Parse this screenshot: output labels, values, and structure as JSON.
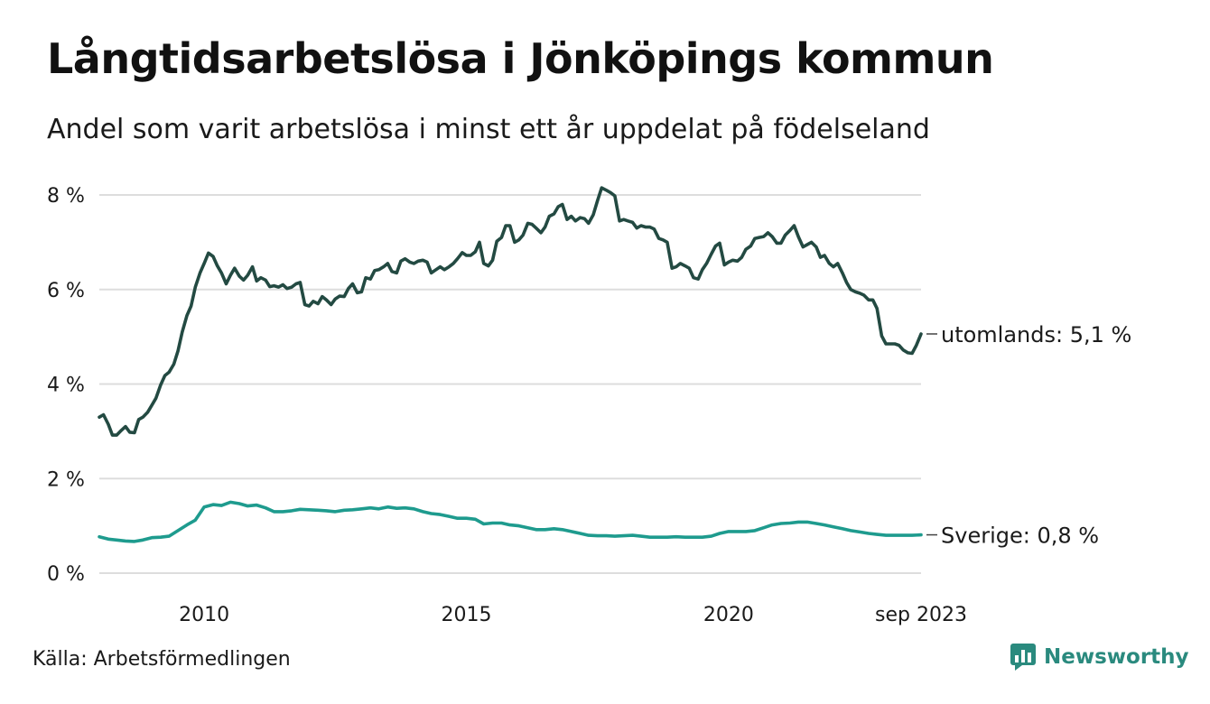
{
  "title": "Långtidsarbetslösa i Jönköpings kommun",
  "subtitle": "Andel som varit arbetslösa i minst ett år uppdelat på födelseland",
  "source": "Källa: Arbetsförmedlingen",
  "brand": {
    "name": "Newsworthy",
    "icon": "bar-chart-icon",
    "color": "#2a8a7e"
  },
  "chart_data": {
    "type": "line",
    "x_unit": "decimal year (monthly data)",
    "xlim": [
      2008.0,
      2023.67
    ],
    "ylim": [
      0,
      8
    ],
    "y_ticks": [
      {
        "value": 0,
        "label": "0 %"
      },
      {
        "value": 2,
        "label": "2 %"
      },
      {
        "value": 4,
        "label": "4 %"
      },
      {
        "value": 6,
        "label": "6 %"
      },
      {
        "value": 8,
        "label": "8 %"
      }
    ],
    "x_ticks": [
      {
        "value": 2010,
        "label": "2010"
      },
      {
        "value": 2015,
        "label": "2015"
      },
      {
        "value": 2020,
        "label": "2020"
      },
      {
        "value": 2023.67,
        "label": "sep 2023"
      }
    ],
    "grid": "horizontal",
    "series": [
      {
        "name": "utomlands",
        "label": "utomlands: 5,1 %",
        "color": "#234a42",
        "points": [
          [
            2008.0,
            3.3
          ],
          [
            2008.08,
            3.35
          ],
          [
            2008.17,
            3.15
          ],
          [
            2008.25,
            2.92
          ],
          [
            2008.33,
            2.92
          ],
          [
            2008.42,
            3.02
          ],
          [
            2008.5,
            3.1
          ],
          [
            2008.58,
            2.98
          ],
          [
            2008.67,
            2.97
          ],
          [
            2008.75,
            3.25
          ],
          [
            2008.83,
            3.3
          ],
          [
            2008.92,
            3.4
          ],
          [
            2009.0,
            3.55
          ],
          [
            2009.08,
            3.7
          ],
          [
            2009.17,
            3.98
          ],
          [
            2009.25,
            4.18
          ],
          [
            2009.33,
            4.25
          ],
          [
            2009.42,
            4.42
          ],
          [
            2009.5,
            4.7
          ],
          [
            2009.58,
            5.1
          ],
          [
            2009.67,
            5.45
          ],
          [
            2009.75,
            5.65
          ],
          [
            2009.83,
            6.05
          ],
          [
            2009.92,
            6.35
          ],
          [
            2010.0,
            6.55
          ],
          [
            2010.08,
            6.77
          ],
          [
            2010.17,
            6.7
          ],
          [
            2010.25,
            6.5
          ],
          [
            2010.33,
            6.35
          ],
          [
            2010.42,
            6.12
          ],
          [
            2010.5,
            6.3
          ],
          [
            2010.58,
            6.45
          ],
          [
            2010.67,
            6.28
          ],
          [
            2010.75,
            6.2
          ],
          [
            2010.83,
            6.3
          ],
          [
            2010.92,
            6.48
          ],
          [
            2011.0,
            6.18
          ],
          [
            2011.08,
            6.25
          ],
          [
            2011.17,
            6.2
          ],
          [
            2011.25,
            6.06
          ],
          [
            2011.33,
            6.08
          ],
          [
            2011.42,
            6.05
          ],
          [
            2011.5,
            6.1
          ],
          [
            2011.58,
            6.02
          ],
          [
            2011.67,
            6.05
          ],
          [
            2011.75,
            6.12
          ],
          [
            2011.83,
            6.15
          ],
          [
            2011.92,
            5.68
          ],
          [
            2012.0,
            5.65
          ],
          [
            2012.08,
            5.75
          ],
          [
            2012.17,
            5.7
          ],
          [
            2012.25,
            5.85
          ],
          [
            2012.33,
            5.78
          ],
          [
            2012.42,
            5.68
          ],
          [
            2012.5,
            5.8
          ],
          [
            2012.58,
            5.86
          ],
          [
            2012.67,
            5.85
          ],
          [
            2012.75,
            6.02
          ],
          [
            2012.83,
            6.12
          ],
          [
            2012.92,
            5.93
          ],
          [
            2013.0,
            5.95
          ],
          [
            2013.08,
            6.25
          ],
          [
            2013.17,
            6.22
          ],
          [
            2013.25,
            6.4
          ],
          [
            2013.33,
            6.42
          ],
          [
            2013.42,
            6.48
          ],
          [
            2013.5,
            6.55
          ],
          [
            2013.58,
            6.38
          ],
          [
            2013.67,
            6.35
          ],
          [
            2013.75,
            6.6
          ],
          [
            2013.83,
            6.65
          ],
          [
            2013.92,
            6.58
          ],
          [
            2014.0,
            6.55
          ],
          [
            2014.08,
            6.6
          ],
          [
            2014.17,
            6.62
          ],
          [
            2014.25,
            6.58
          ],
          [
            2014.33,
            6.35
          ],
          [
            2014.42,
            6.42
          ],
          [
            2014.5,
            6.48
          ],
          [
            2014.58,
            6.42
          ],
          [
            2014.67,
            6.48
          ],
          [
            2014.75,
            6.55
          ],
          [
            2014.83,
            6.65
          ],
          [
            2014.92,
            6.78
          ],
          [
            2015.0,
            6.72
          ],
          [
            2015.08,
            6.72
          ],
          [
            2015.17,
            6.8
          ],
          [
            2015.25,
            7.0
          ],
          [
            2015.33,
            6.55
          ],
          [
            2015.42,
            6.5
          ],
          [
            2015.5,
            6.62
          ],
          [
            2015.58,
            7.02
          ],
          [
            2015.67,
            7.1
          ],
          [
            2015.75,
            7.35
          ],
          [
            2015.83,
            7.35
          ],
          [
            2015.92,
            7.0
          ],
          [
            2016.0,
            7.05
          ],
          [
            2016.08,
            7.15
          ],
          [
            2016.17,
            7.4
          ],
          [
            2016.25,
            7.38
          ],
          [
            2016.33,
            7.3
          ],
          [
            2016.42,
            7.2
          ],
          [
            2016.5,
            7.32
          ],
          [
            2016.58,
            7.55
          ],
          [
            2016.67,
            7.6
          ],
          [
            2016.75,
            7.75
          ],
          [
            2016.83,
            7.8
          ],
          [
            2016.92,
            7.48
          ],
          [
            2017.0,
            7.55
          ],
          [
            2017.08,
            7.45
          ],
          [
            2017.17,
            7.52
          ],
          [
            2017.25,
            7.5
          ],
          [
            2017.33,
            7.4
          ],
          [
            2017.42,
            7.58
          ],
          [
            2017.5,
            7.88
          ],
          [
            2017.58,
            8.15
          ],
          [
            2017.67,
            8.1
          ],
          [
            2017.75,
            8.05
          ],
          [
            2017.83,
            7.98
          ],
          [
            2017.92,
            7.45
          ],
          [
            2018.0,
            7.48
          ],
          [
            2018.08,
            7.45
          ],
          [
            2018.17,
            7.42
          ],
          [
            2018.25,
            7.3
          ],
          [
            2018.33,
            7.35
          ],
          [
            2018.42,
            7.32
          ],
          [
            2018.5,
            7.32
          ],
          [
            2018.58,
            7.28
          ],
          [
            2018.67,
            7.08
          ],
          [
            2018.75,
            7.05
          ],
          [
            2018.83,
            7.0
          ],
          [
            2018.92,
            6.45
          ],
          [
            2019.0,
            6.48
          ],
          [
            2019.08,
            6.55
          ],
          [
            2019.17,
            6.5
          ],
          [
            2019.25,
            6.45
          ],
          [
            2019.33,
            6.25
          ],
          [
            2019.42,
            6.22
          ],
          [
            2019.5,
            6.42
          ],
          [
            2019.58,
            6.55
          ],
          [
            2019.67,
            6.75
          ],
          [
            2019.75,
            6.92
          ],
          [
            2019.83,
            6.98
          ],
          [
            2019.92,
            6.52
          ],
          [
            2020.0,
            6.58
          ],
          [
            2020.08,
            6.62
          ],
          [
            2020.17,
            6.6
          ],
          [
            2020.25,
            6.68
          ],
          [
            2020.33,
            6.85
          ],
          [
            2020.42,
            6.92
          ],
          [
            2020.5,
            7.08
          ],
          [
            2020.58,
            7.1
          ],
          [
            2020.67,
            7.12
          ],
          [
            2020.75,
            7.2
          ],
          [
            2020.83,
            7.12
          ],
          [
            2020.92,
            6.98
          ],
          [
            2021.0,
            6.98
          ],
          [
            2021.08,
            7.15
          ],
          [
            2021.17,
            7.25
          ],
          [
            2021.25,
            7.35
          ],
          [
            2021.33,
            7.12
          ],
          [
            2021.42,
            6.9
          ],
          [
            2021.5,
            6.95
          ],
          [
            2021.58,
            7.0
          ],
          [
            2021.67,
            6.9
          ],
          [
            2021.75,
            6.68
          ],
          [
            2021.83,
            6.72
          ],
          [
            2021.92,
            6.55
          ],
          [
            2022.0,
            6.48
          ],
          [
            2022.08,
            6.55
          ],
          [
            2022.17,
            6.35
          ],
          [
            2022.25,
            6.15
          ],
          [
            2022.33,
            6.0
          ],
          [
            2022.42,
            5.95
          ],
          [
            2022.5,
            5.92
          ],
          [
            2022.58,
            5.88
          ],
          [
            2022.67,
            5.78
          ],
          [
            2022.75,
            5.78
          ],
          [
            2022.83,
            5.6
          ],
          [
            2022.92,
            5.02
          ],
          [
            2023.0,
            4.85
          ],
          [
            2023.08,
            4.85
          ],
          [
            2023.17,
            4.85
          ],
          [
            2023.25,
            4.82
          ],
          [
            2023.33,
            4.72
          ],
          [
            2023.42,
            4.66
          ],
          [
            2023.5,
            4.65
          ],
          [
            2023.58,
            4.82
          ],
          [
            2023.67,
            5.06
          ]
        ]
      },
      {
        "name": "Sverige",
        "label": "Sverige: 0,8 %",
        "color": "#1e9b8e",
        "points": [
          [
            2008.0,
            0.77
          ],
          [
            2008.17,
            0.72
          ],
          [
            2008.33,
            0.7
          ],
          [
            2008.5,
            0.68
          ],
          [
            2008.67,
            0.67
          ],
          [
            2008.83,
            0.7
          ],
          [
            2009.0,
            0.75
          ],
          [
            2009.17,
            0.76
          ],
          [
            2009.33,
            0.78
          ],
          [
            2009.5,
            0.9
          ],
          [
            2009.67,
            1.02
          ],
          [
            2009.83,
            1.12
          ],
          [
            2010.0,
            1.4
          ],
          [
            2010.17,
            1.45
          ],
          [
            2010.33,
            1.43
          ],
          [
            2010.5,
            1.5
          ],
          [
            2010.67,
            1.47
          ],
          [
            2010.83,
            1.42
          ],
          [
            2011.0,
            1.44
          ],
          [
            2011.17,
            1.38
          ],
          [
            2011.33,
            1.3
          ],
          [
            2011.5,
            1.3
          ],
          [
            2011.67,
            1.32
          ],
          [
            2011.83,
            1.35
          ],
          [
            2012.0,
            1.34
          ],
          [
            2012.17,
            1.33
          ],
          [
            2012.33,
            1.32
          ],
          [
            2012.5,
            1.3
          ],
          [
            2012.67,
            1.33
          ],
          [
            2012.83,
            1.34
          ],
          [
            2013.0,
            1.36
          ],
          [
            2013.17,
            1.38
          ],
          [
            2013.33,
            1.36
          ],
          [
            2013.5,
            1.4
          ],
          [
            2013.67,
            1.37
          ],
          [
            2013.83,
            1.38
          ],
          [
            2014.0,
            1.36
          ],
          [
            2014.17,
            1.3
          ],
          [
            2014.33,
            1.26
          ],
          [
            2014.5,
            1.24
          ],
          [
            2014.67,
            1.2
          ],
          [
            2014.83,
            1.16
          ],
          [
            2015.0,
            1.16
          ],
          [
            2015.17,
            1.14
          ],
          [
            2015.33,
            1.04
          ],
          [
            2015.5,
            1.06
          ],
          [
            2015.67,
            1.06
          ],
          [
            2015.83,
            1.02
          ],
          [
            2016.0,
            1.0
          ],
          [
            2016.17,
            0.96
          ],
          [
            2016.33,
            0.92
          ],
          [
            2016.5,
            0.92
          ],
          [
            2016.67,
            0.94
          ],
          [
            2016.83,
            0.92
          ],
          [
            2017.0,
            0.88
          ],
          [
            2017.17,
            0.84
          ],
          [
            2017.33,
            0.8
          ],
          [
            2017.5,
            0.79
          ],
          [
            2017.67,
            0.79
          ],
          [
            2017.83,
            0.78
          ],
          [
            2018.0,
            0.79
          ],
          [
            2018.17,
            0.8
          ],
          [
            2018.33,
            0.78
          ],
          [
            2018.5,
            0.76
          ],
          [
            2018.67,
            0.76
          ],
          [
            2018.83,
            0.76
          ],
          [
            2019.0,
            0.77
          ],
          [
            2019.17,
            0.76
          ],
          [
            2019.33,
            0.76
          ],
          [
            2019.5,
            0.76
          ],
          [
            2019.67,
            0.78
          ],
          [
            2019.83,
            0.84
          ],
          [
            2020.0,
            0.88
          ],
          [
            2020.17,
            0.88
          ],
          [
            2020.33,
            0.88
          ],
          [
            2020.5,
            0.9
          ],
          [
            2020.67,
            0.96
          ],
          [
            2020.83,
            1.02
          ],
          [
            2021.0,
            1.05
          ],
          [
            2021.17,
            1.06
          ],
          [
            2021.33,
            1.08
          ],
          [
            2021.5,
            1.08
          ],
          [
            2021.67,
            1.05
          ],
          [
            2021.83,
            1.02
          ],
          [
            2022.0,
            0.98
          ],
          [
            2022.17,
            0.94
          ],
          [
            2022.33,
            0.9
          ],
          [
            2022.5,
            0.87
          ],
          [
            2022.67,
            0.84
          ],
          [
            2022.83,
            0.82
          ],
          [
            2023.0,
            0.8
          ],
          [
            2023.17,
            0.8
          ],
          [
            2023.33,
            0.8
          ],
          [
            2023.5,
            0.8
          ],
          [
            2023.67,
            0.81
          ]
        ]
      }
    ]
  }
}
